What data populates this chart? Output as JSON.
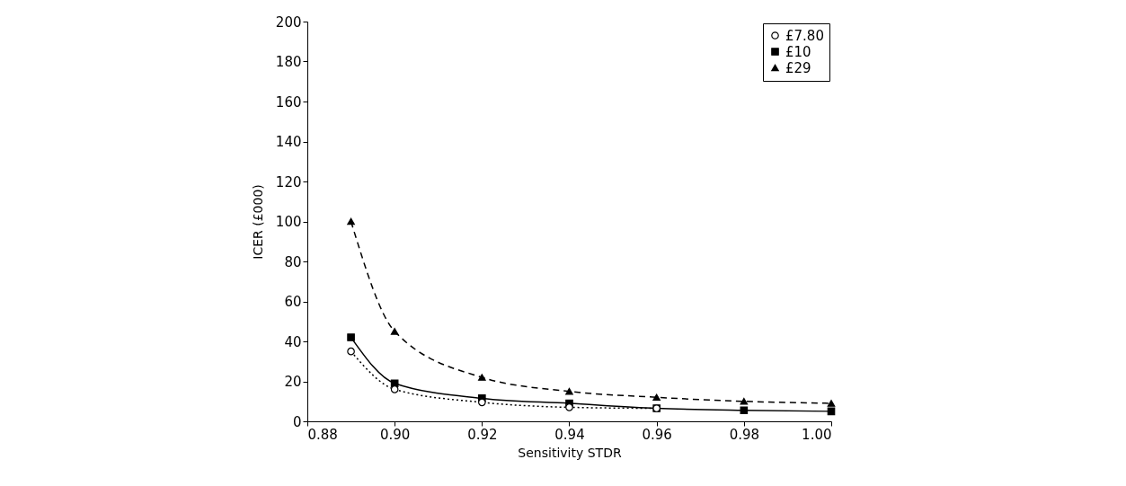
{
  "chart_data": {
    "type": "line",
    "xlabel": "Sensitivity STDR",
    "ylabel": "ICER (£000)",
    "x": [
      0.89,
      0.9,
      0.92,
      0.94,
      0.96,
      0.98,
      1.0
    ],
    "series": [
      {
        "name": "£7.80",
        "color": "#000000",
        "marker": "circle",
        "line_style": "dotted",
        "values": [
          35,
          16,
          9.5,
          7,
          6.5,
          null,
          null
        ]
      },
      {
        "name": "£10",
        "color": "#000000",
        "marker": "square",
        "line_style": "solid",
        "values": [
          42,
          19,
          11.5,
          9,
          6.5,
          5.5,
          5
        ]
      },
      {
        "name": "£29",
        "color": "#000000",
        "marker": "triangle",
        "line_style": "dashed",
        "values": [
          100,
          45,
          22,
          15,
          12,
          10,
          9
        ]
      }
    ],
    "xlim": [
      0.88,
      1.0
    ],
    "xticks": [
      0.88,
      {
        "value": 0.9,
        "label": "0.90"
      },
      0.92,
      0.94,
      0.96,
      0.98,
      {
        "value": 1,
        "label": "1.00"
      }
    ],
    "ylim": [
      0,
      200
    ],
    "yticks": [
      0,
      20,
      40,
      60,
      80,
      100,
      120,
      140,
      160,
      180,
      200
    ],
    "grid": false,
    "legend": "top right"
  }
}
